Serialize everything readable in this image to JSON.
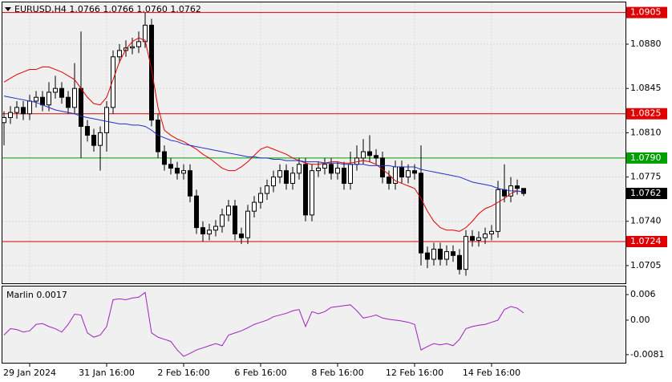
{
  "chart_data": [
    {
      "type": "candlestick",
      "title": "EURUSD,H4  1.0766 1.0766 1.0760 1.0762",
      "categories": [
        null,
        null,
        null,
        null,
        "29 Jan 2024",
        null,
        null,
        null,
        null,
        null,
        null,
        null,
        null,
        null,
        null,
        null,
        "31 Jan 16:00",
        null,
        null,
        null,
        null,
        null,
        null,
        null,
        null,
        null,
        null,
        null,
        "2 Feb 16:00",
        null,
        null,
        null,
        null,
        null,
        null,
        null,
        null,
        null,
        null,
        null,
        "6 Feb 16:00",
        null,
        null,
        null,
        null,
        null,
        null,
        null,
        null,
        null,
        null,
        null,
        "8 Feb 16:00",
        null,
        null,
        null,
        null,
        null,
        null,
        null,
        null,
        null,
        null,
        null,
        "12 Feb 16:00",
        null,
        null,
        null,
        null,
        null,
        null,
        null,
        null,
        null,
        null,
        null,
        "14 Feb 16:00",
        null,
        null,
        null,
        null,
        null
      ],
      "open": [
        1.0818,
        1.0822,
        1.0826,
        1.083,
        1.0825,
        1.0835,
        1.0838,
        1.0832,
        1.0842,
        1.0845,
        1.0838,
        1.083,
        1.0845,
        1.0815,
        1.0808,
        1.08,
        1.081,
        1.083,
        1.087,
        1.0875,
        1.0877,
        1.0878,
        1.0882,
        1.0895,
        1.082,
        1.0795,
        1.0785,
        1.0782,
        1.0778,
        1.078,
        1.076,
        1.0735,
        1.073,
        1.0733,
        1.0736,
        1.0745,
        1.0752,
        1.073,
        1.0727,
        1.0748,
        1.0755,
        1.0762,
        1.0768,
        1.0775,
        1.078,
        1.077,
        1.0778,
        1.0785,
        1.0745,
        1.078,
        1.0782,
        1.0785,
        1.0778,
        1.0782,
        1.077,
        1.0785,
        1.079,
        1.0795,
        1.0792,
        1.079,
        1.0775,
        1.077,
        1.0783,
        1.0775,
        1.078,
        1.0778,
        1.0715,
        1.071,
        1.0718,
        1.071,
        1.0716,
        1.0713,
        1.0702,
        1.0728,
        1.0725,
        1.0727,
        1.073,
        1.0732,
        1.0765,
        1.076,
        1.0768,
        1.0766
      ],
      "high": [
        1.0827,
        1.0831,
        1.0835,
        1.0835,
        1.084,
        1.0843,
        1.0843,
        1.085,
        1.0855,
        1.085,
        1.0843,
        1.0865,
        1.089,
        1.082,
        1.0813,
        1.0815,
        1.0835,
        1.0875,
        1.088,
        1.0883,
        1.0885,
        1.089,
        1.0905,
        1.09,
        1.0825,
        1.08,
        1.079,
        1.0787,
        1.0785,
        1.0785,
        1.0765,
        1.074,
        1.0738,
        1.0741,
        1.075,
        1.0757,
        1.0757,
        1.0735,
        1.0753,
        1.076,
        1.0767,
        1.0773,
        1.078,
        1.0785,
        1.0785,
        1.0783,
        1.079,
        1.079,
        1.0785,
        1.0787,
        1.079,
        1.079,
        1.0787,
        1.0787,
        1.0795,
        1.08,
        1.0805,
        1.0808,
        1.0797,
        1.0795,
        1.078,
        1.0788,
        1.0788,
        1.0785,
        1.0785,
        1.08,
        1.072,
        1.0723,
        1.0723,
        1.0721,
        1.0721,
        1.0718,
        1.0733,
        1.0733,
        1.0732,
        1.0735,
        1.0737,
        1.0772,
        1.0785,
        1.0775,
        1.0773,
        1.0766
      ],
      "low": [
        1.08,
        1.0817,
        1.0821,
        1.082,
        1.082,
        1.083,
        1.0827,
        1.0827,
        1.0837,
        1.0833,
        1.0825,
        1.0825,
        1.079,
        1.0803,
        1.0795,
        1.078,
        1.0795,
        1.0825,
        1.0865,
        1.087,
        1.0872,
        1.0873,
        1.0877,
        1.0815,
        1.079,
        1.078,
        1.0777,
        1.0773,
        1.0773,
        1.0755,
        1.073,
        1.0724,
        1.0725,
        1.0728,
        1.0731,
        1.074,
        1.0725,
        1.0722,
        1.0722,
        1.0743,
        1.075,
        1.0757,
        1.0763,
        1.077,
        1.0765,
        1.0765,
        1.0773,
        1.074,
        1.074,
        1.0775,
        1.0777,
        1.0773,
        1.0773,
        1.0765,
        1.0765,
        1.078,
        1.0785,
        1.0787,
        1.0785,
        1.077,
        1.0765,
        1.0765,
        1.077,
        1.077,
        1.0773,
        1.0705,
        1.0703,
        1.0705,
        1.0705,
        1.0705,
        1.0708,
        1.0698,
        1.0697,
        1.072,
        1.072,
        1.0722,
        1.0725,
        1.0727,
        1.0755,
        1.0755,
        1.0761,
        1.076
      ],
      "close": [
        1.0822,
        1.0826,
        1.083,
        1.0825,
        1.0835,
        1.0838,
        1.0832,
        1.0842,
        1.0845,
        1.0838,
        1.083,
        1.0845,
        1.0815,
        1.0808,
        1.08,
        1.081,
        1.083,
        1.087,
        1.0875,
        1.0877,
        1.0878,
        1.0882,
        1.0895,
        1.082,
        1.0795,
        1.0785,
        1.0782,
        1.0778,
        1.078,
        1.076,
        1.0735,
        1.073,
        1.0733,
        1.0736,
        1.0745,
        1.0752,
        1.073,
        1.0727,
        1.0748,
        1.0755,
        1.0762,
        1.0768,
        1.0775,
        1.078,
        1.077,
        1.0778,
        1.0785,
        1.0745,
        1.078,
        1.0782,
        1.0785,
        1.0778,
        1.0782,
        1.077,
        1.0785,
        1.079,
        1.0795,
        1.0792,
        1.079,
        1.0775,
        1.077,
        1.0783,
        1.0775,
        1.078,
        1.0778,
        1.0715,
        1.071,
        1.0718,
        1.071,
        1.0716,
        1.0713,
        1.0702,
        1.0728,
        1.0725,
        1.0727,
        1.073,
        1.0732,
        1.0765,
        1.076,
        1.0768,
        1.0766,
        1.0762
      ],
      "series": [
        {
          "color": "#e00000",
          "values": [
            1.085,
            1.0853,
            1.0856,
            1.0858,
            1.086,
            1.086,
            1.0862,
            1.0862,
            1.086,
            1.0858,
            1.0855,
            1.0852,
            1.0845,
            1.0838,
            1.0833,
            1.0832,
            1.0838,
            1.0852,
            1.0866,
            1.0876,
            1.0882,
            1.0885,
            1.0883,
            1.086,
            1.083,
            1.0812,
            1.0808,
            1.0805,
            1.0803,
            1.08,
            1.0797,
            1.0793,
            1.079,
            1.0786,
            1.0782,
            1.078,
            1.078,
            1.0783,
            1.0787,
            1.0792,
            1.0797,
            1.0799,
            1.0797,
            1.0795,
            1.0793,
            1.079,
            1.0788,
            1.0786,
            1.0785,
            1.0785,
            1.0786,
            1.0787,
            1.0787,
            1.0786,
            1.0786,
            1.0787,
            1.0788,
            1.0787,
            1.0785,
            1.0781,
            1.0777,
            1.0772,
            1.077,
            1.0768,
            1.0766,
            1.0758,
            1.0748,
            1.074,
            1.0735,
            1.0733,
            1.0733,
            1.0732,
            1.0735,
            1.074,
            1.0746,
            1.075,
            1.0752,
            1.0755,
            1.0758,
            1.0762,
            1.0764,
            1.0763
          ]
        },
        {
          "color": "#1f2fc8",
          "values": [
            1.0839,
            1.0838,
            1.0837,
            1.0836,
            1.0835,
            1.0834,
            1.0832,
            1.083,
            1.0828,
            1.0827,
            1.0826,
            1.0825,
            1.0823,
            1.0822,
            1.0821,
            1.082,
            1.0819,
            1.0818,
            1.0817,
            1.0817,
            1.0816,
            1.0816,
            1.0815,
            1.0812,
            1.0808,
            1.0806,
            1.0804,
            1.0803,
            1.0801,
            1.08,
            1.0799,
            1.0798,
            1.0797,
            1.0796,
            1.0795,
            1.0794,
            1.0793,
            1.0792,
            1.0791,
            1.0791,
            1.079,
            1.079,
            1.0789,
            1.0789,
            1.0788,
            1.0788,
            1.0788,
            1.0787,
            1.0787,
            1.0787,
            1.0786,
            1.0786,
            1.0786,
            1.0785,
            1.0785,
            1.0785,
            1.0785,
            1.0784,
            1.0784,
            1.0784,
            1.0784,
            1.0783,
            1.0783,
            1.0783,
            1.0783,
            1.0781,
            1.078,
            1.0779,
            1.0778,
            1.0777,
            1.0776,
            1.0775,
            1.0773,
            1.0771,
            1.077,
            1.0769,
            1.0768,
            1.0766,
            1.0765,
            1.0764,
            1.0764,
            1.0763
          ]
        }
      ],
      "ylim": [
        1.0691,
        1.0913
      ],
      "yticks": [
        {
          "value": 1.088,
          "label": "1.0880"
        },
        1.0845,
        {
          "value": 1.081,
          "label": "1.0810"
        },
        1.0775,
        {
          "value": 1.074,
          "label": "1.0740"
        },
        1.0705
      ],
      "levels": [
        {
          "value": 1.0905,
          "color": "#e00000"
        },
        {
          "value": 1.0825,
          "color": "#e00000"
        },
        {
          "value": 1.079,
          "label": "1.0790",
          "color": "#00a000"
        },
        {
          "value": 1.0724,
          "color": "#e00000"
        }
      ],
      "current_price": 1.0762,
      "grid": true
    },
    {
      "type": "line",
      "title": "Marlin 0.0017",
      "series": [
        {
          "color": "#a020c0",
          "values": [
            -0.0035,
            -0.002,
            -0.0022,
            -0.0028,
            -0.0025,
            -0.001,
            -0.0008,
            -0.0015,
            -0.002,
            -0.0028,
            -0.001,
            0.0014,
            0.0012,
            -0.003,
            -0.004,
            -0.0035,
            -0.0015,
            0.0048,
            0.005,
            0.0048,
            0.0052,
            0.0054,
            0.0065,
            -0.003,
            -0.004,
            -0.0045,
            -0.005,
            -0.007,
            -0.0085,
            -0.0078,
            -0.007,
            -0.0065,
            -0.006,
            -0.0055,
            -0.006,
            -0.0035,
            -0.003,
            -0.0025,
            -0.0018,
            -0.001,
            -0.0005,
            0.0,
            0.0008,
            0.0012,
            0.0016,
            0.0022,
            0.0025,
            -0.0015,
            0.002,
            0.0015,
            0.002,
            0.003,
            0.0032,
            0.0034,
            0.0036,
            0.0022,
            0.0005,
            0.0008,
            0.0012,
            0.0005,
            0.0002,
            0.0,
            -0.0002,
            -0.0005,
            -0.001,
            -0.007,
            -0.0062,
            -0.0055,
            -0.0058,
            -0.0055,
            -0.006,
            -0.0045,
            -0.002,
            -0.0015,
            -0.0012,
            -0.001,
            -0.0005,
            0.0,
            0.0025,
            0.0032,
            0.0028,
            0.0017
          ]
        }
      ],
      "ylim": [
        -0.01,
        0.0079
      ],
      "yticks": [
        0.006,
        {
          "value": 0,
          "label": "0.00"
        },
        -0.0081
      ],
      "grid": false
    }
  ]
}
